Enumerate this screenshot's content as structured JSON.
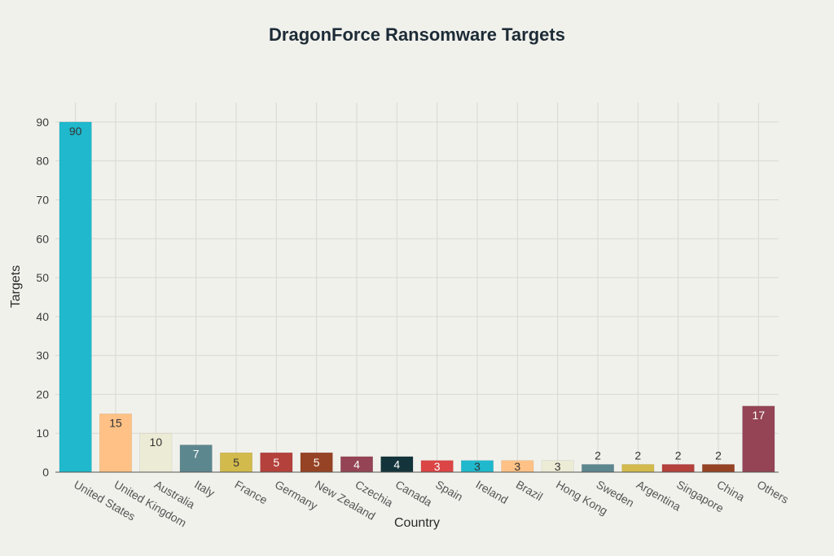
{
  "chart_data": {
    "type": "bar",
    "title": "DragonForce Ransomware Targets",
    "xlabel": "Country",
    "ylabel": "Targets",
    "ylim": [
      0,
      95
    ],
    "yticks": [
      0,
      10,
      20,
      30,
      40,
      50,
      60,
      70,
      80,
      90
    ],
    "grid": true,
    "categories": [
      "United States",
      "United Kingdom",
      "Australia",
      "Italy",
      "France",
      "Germany",
      "New Zealand",
      "Czechia",
      "Canada",
      "Spain",
      "Ireland",
      "Brazil",
      "Hong Kong",
      "Sweden",
      "Argentina",
      "Singapore",
      "China",
      "Others"
    ],
    "values": [
      90,
      15,
      10,
      7,
      5,
      5,
      5,
      4,
      4,
      3,
      3,
      3,
      3,
      2,
      2,
      2,
      2,
      17
    ],
    "colors": [
      "#1fb8cd",
      "#ffc185",
      "#ecebd5",
      "#5d878f",
      "#d2ba4c",
      "#b4413c",
      "#964325",
      "#944454",
      "#13343b",
      "#db4545",
      "#1fb8cd",
      "#ffc185",
      "#ecebd5",
      "#5d878f",
      "#d2ba4c",
      "#b4413c",
      "#964325",
      "#944454"
    ],
    "label_colors": [
      "#333333",
      "#333333",
      "#333333",
      "#ffffff",
      "#333333",
      "#ffffff",
      "#ffffff",
      "#ffffff",
      "#ffffff",
      "#ffffff",
      "#333333",
      "#333333",
      "#333333",
      "#333333",
      "#333333",
      "#333333",
      "#333333",
      "#ffffff"
    ]
  }
}
